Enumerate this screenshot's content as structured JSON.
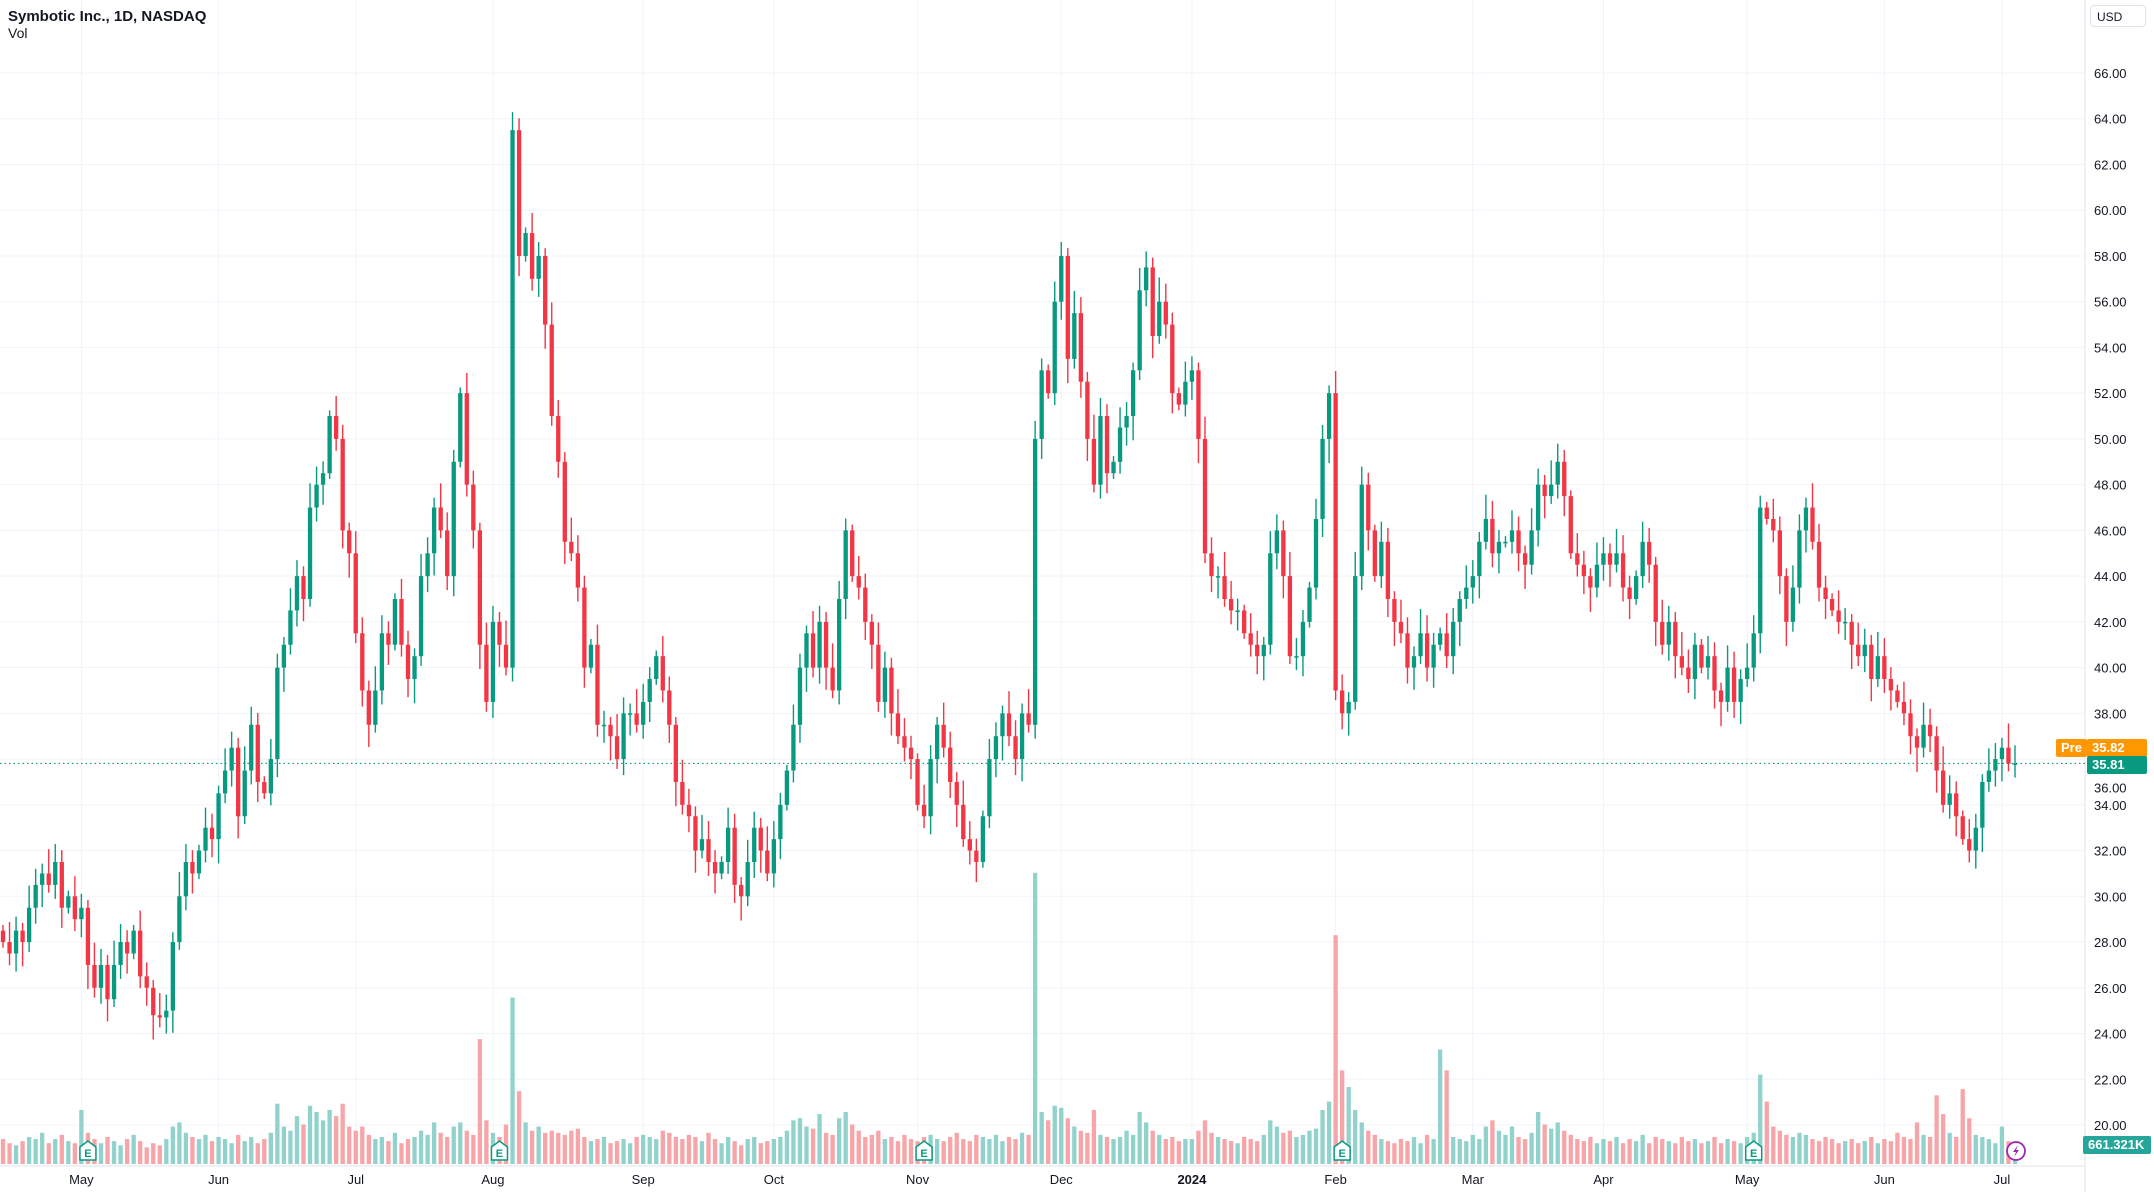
{
  "header": {
    "title": "Symbotic Inc., 1D, NASDAQ",
    "volume_label": "Vol",
    "currency": "USD"
  },
  "badges": {
    "pre_label": "Pre",
    "pre_price": "35.82",
    "last_price": "35.81",
    "volume_value": "661.321K"
  },
  "colors": {
    "up": "#089981",
    "down": "#f23645",
    "vol_up": "#92d2cc",
    "vol_down": "#f7a5a9",
    "pre": "#ff9800",
    "earnings": "#089981",
    "lightning": "#9c27b0"
  },
  "chart_data": {
    "type": "candlestick",
    "title": "Symbotic Inc., 1D, NASDAQ",
    "ylabel": "USD",
    "ylim": [
      19,
      67
    ],
    "y_ticks": [
      "66.00",
      "64.00",
      "62.00",
      "60.00",
      "58.00",
      "56.00",
      "54.00",
      "52.00",
      "50.00",
      "48.00",
      "46.00",
      "44.00",
      "42.00",
      "40.00",
      "38.00",
      "36.00",
      "34.00",
      "32.00",
      "30.00",
      "28.00",
      "26.00",
      "24.00",
      "22.00",
      "20.00"
    ],
    "last_price": 35.81,
    "pre_market_price": 35.82,
    "first_open": 28.5,
    "months": [
      {
        "label": "",
        "close": [
          28,
          27.5,
          28.5,
          28,
          29.5,
          30.5,
          31,
          30.5,
          31.5,
          29.5,
          30,
          29
        ],
        "vol": [
          1.2,
          1.0,
          0.9,
          1.1,
          1.3,
          1.2,
          1.5,
          1.0,
          1.2,
          1.4,
          1.1,
          1.0
        ]
      },
      {
        "label": "May",
        "close": [
          29.5,
          27,
          26,
          27,
          25.5,
          27,
          28,
          27.5,
          28.5,
          26.5,
          26,
          24.8,
          24.7,
          25,
          28,
          30,
          31.5,
          31,
          32,
          33,
          32.5
        ],
        "vol": [
          2.6,
          1.5,
          1.2,
          1.0,
          1.3,
          1.1,
          0.9,
          1.2,
          1.4,
          1.1,
          0.8,
          1.0,
          0.9,
          1.2,
          1.8,
          2.0,
          1.5,
          1.3,
          1.2,
          1.4,
          1.1
        ]
      },
      {
        "label": "Jun",
        "close": [
          34.5,
          35.5,
          36.5,
          33.5,
          35.5,
          37.5,
          35,
          34.5,
          36,
          40,
          41,
          42.5,
          44,
          43,
          47,
          48,
          48.5,
          51,
          50,
          46,
          45
        ],
        "vol": [
          1.3,
          1.2,
          1.0,
          1.4,
          1.1,
          1.3,
          1.0,
          1.2,
          1.5,
          2.9,
          1.8,
          1.6,
          2.3,
          1.9,
          2.8,
          2.5,
          2.1,
          2.6,
          2.3,
          2.9,
          1.8
        ]
      },
      {
        "label": "Jul",
        "close": [
          41.5,
          39,
          37.5,
          39,
          41.5,
          41,
          43,
          41,
          39.5,
          40.5,
          44,
          45,
          47,
          46,
          44,
          49,
          52,
          48,
          46,
          41,
          38.5
        ],
        "vol": [
          1.6,
          1.8,
          1.4,
          1.2,
          1.3,
          1.1,
          1.5,
          1.0,
          1.2,
          1.3,
          1.6,
          1.4,
          2.0,
          1.5,
          1.3,
          1.8,
          2.0,
          1.6,
          1.4,
          6.0,
          2.1
        ]
      },
      {
        "label": "Aug",
        "close": [
          42,
          41,
          40,
          63.5,
          58,
          59,
          57,
          58,
          55,
          51,
          49,
          45.5,
          45,
          43.5,
          40,
          41,
          37.5,
          37.5,
          37,
          36,
          38,
          38,
          37.5
        ],
        "vol": [
          1.5,
          1.3,
          1.9,
          8.0,
          3.5,
          2.0,
          1.6,
          1.8,
          1.5,
          1.6,
          1.5,
          1.4,
          1.6,
          1.7,
          1.3,
          1.1,
          1.2,
          1.3,
          1.0,
          1.1,
          1.2,
          1.0,
          1.3
        ]
      },
      {
        "label": "Sep",
        "close": [
          38.5,
          39.5,
          40.5,
          39,
          37.5,
          35,
          34,
          33.5,
          32,
          32.5,
          31.5,
          31,
          31.5,
          33,
          30.5,
          30,
          31.5,
          33,
          32,
          31
        ],
        "vol": [
          1.4,
          1.3,
          1.2,
          1.6,
          1.5,
          1.3,
          1.2,
          1.4,
          1.3,
          1.1,
          1.5,
          1.2,
          1.0,
          1.3,
          1.1,
          0.9,
          1.2,
          1.3,
          1.0,
          1.1
        ]
      },
      {
        "label": "Oct",
        "close": [
          32.5,
          34,
          35.5,
          37.5,
          40,
          41.5,
          40,
          42,
          40,
          39,
          43,
          46,
          44,
          43.5,
          42,
          41,
          38.5,
          40,
          38,
          37,
          36.5,
          36
        ],
        "vol": [
          1.2,
          1.3,
          1.6,
          2.1,
          2.2,
          1.8,
          1.7,
          2.4,
          1.5,
          1.4,
          2.2,
          2.5,
          1.9,
          1.6,
          1.3,
          1.4,
          1.6,
          1.2,
          1.3,
          1.1,
          1.4,
          1.2
        ]
      },
      {
        "label": "Nov",
        "close": [
          34,
          33.5,
          36,
          37.5,
          36.5,
          35,
          34,
          32.5,
          32,
          31.5,
          33.5,
          36,
          37,
          38,
          37,
          36,
          38,
          37.5,
          50,
          53,
          52,
          56
        ],
        "vol": [
          1.1,
          1.3,
          1.4,
          1.2,
          1.1,
          1.3,
          1.5,
          1.2,
          1.1,
          1.4,
          1.3,
          1.2,
          1.4,
          1.1,
          1.3,
          1.2,
          1.5,
          1.4,
          14.0,
          2.5,
          2.1,
          2.8
        ]
      },
      {
        "label": "Dec",
        "close": [
          58,
          53.5,
          55.5,
          52.5,
          50,
          48,
          51,
          48.5,
          49,
          50.5,
          51,
          53,
          56.5,
          57.5,
          54.5,
          56,
          55,
          52,
          51.5,
          52.5
        ],
        "vol": [
          2.7,
          2.2,
          1.8,
          1.6,
          1.5,
          2.6,
          1.4,
          1.3,
          1.2,
          1.3,
          1.6,
          1.4,
          2.5,
          2.0,
          1.6,
          1.4,
          1.2,
          1.3,
          1.1,
          1.2
        ]
      },
      {
        "label": "2024",
        "close": [
          53,
          50,
          45,
          44,
          44,
          43,
          42.5,
          42.5,
          41.5,
          41,
          40.5,
          41,
          45,
          46,
          44,
          40.5,
          40.5,
          42,
          43.5,
          46.5,
          50,
          52
        ],
        "vol": [
          1.2,
          1.6,
          2.1,
          1.5,
          1.3,
          1.2,
          1.1,
          1.0,
          1.3,
          1.2,
          1.1,
          1.4,
          2.1,
          1.8,
          1.5,
          1.6,
          1.3,
          1.4,
          1.6,
          1.7,
          2.6,
          3.0
        ]
      },
      {
        "label": "Feb",
        "close": [
          39,
          38,
          38.5,
          44,
          48,
          46,
          44,
          45.5,
          43,
          42,
          41.5,
          40,
          40.5,
          41.5,
          40,
          41,
          41.5,
          40.5,
          42,
          43,
          43.5
        ],
        "vol": [
          11.0,
          4.5,
          3.7,
          2.6,
          2.0,
          1.6,
          1.4,
          1.2,
          1.1,
          1.0,
          1.2,
          1.1,
          1.3,
          1.0,
          1.4,
          1.2,
          5.5,
          4.5,
          1.3,
          1.2,
          1.1
        ]
      },
      {
        "label": "Mar",
        "close": [
          44,
          45.5,
          46.5,
          45,
          45.5,
          45.5,
          46,
          45,
          44.5,
          46,
          48,
          47.5,
          48,
          49,
          47.5,
          45,
          44.5,
          44,
          43.5,
          44.5
        ],
        "vol": [
          1.4,
          1.2,
          1.8,
          2.1,
          1.6,
          1.4,
          1.8,
          1.3,
          1.2,
          1.5,
          2.5,
          1.9,
          1.7,
          2.0,
          1.6,
          1.4,
          1.2,
          1.1,
          1.3,
          1.0
        ]
      },
      {
        "label": "Apr",
        "close": [
          45,
          44.5,
          45,
          43.5,
          43,
          44,
          45.5,
          44.5,
          42,
          41,
          42,
          40.5,
          40,
          39.5,
          41,
          40,
          40.5,
          39,
          38.5,
          40,
          38.5,
          39.5
        ],
        "vol": [
          1.2,
          1.1,
          1.3,
          1.0,
          1.2,
          1.1,
          1.4,
          1.0,
          1.3,
          1.2,
          1.1,
          1.0,
          1.3,
          1.1,
          1.2,
          1.0,
          1.1,
          1.3,
          1.0,
          1.2,
          1.1,
          1.0
        ]
      },
      {
        "label": "May",
        "close": [
          40,
          41.5,
          47,
          46.5,
          46,
          44,
          42,
          43.5,
          46,
          47,
          45.5,
          43.5,
          43,
          42.5,
          42,
          42,
          41,
          40.5,
          41,
          39.5,
          40.5
        ],
        "vol": [
          1.3,
          1.5,
          4.3,
          3.0,
          1.8,
          1.6,
          1.4,
          1.3,
          1.5,
          1.4,
          1.2,
          1.1,
          1.3,
          1.2,
          1.0,
          1.1,
          1.2,
          1.0,
          1.1,
          1.3,
          1.0
        ]
      },
      {
        "label": "Jun",
        "close": [
          39.5,
          39,
          38.5,
          38,
          37,
          36.5,
          37.5,
          37,
          35.5,
          34,
          34.5,
          33.5,
          32.5,
          32,
          33,
          35,
          35.5,
          36
        ],
        "vol": [
          1.2,
          1.1,
          1.5,
          1.3,
          1.2,
          2.0,
          1.4,
          1.3,
          3.3,
          2.4,
          1.5,
          1.3,
          3.6,
          2.2,
          1.4,
          1.3,
          1.2,
          1.0
        ]
      },
      {
        "label": "Jul",
        "close": [
          36.5,
          35.8,
          35.81
        ],
        "vol": [
          1.8,
          1.1,
          0.2
        ]
      }
    ],
    "earnings_markers_months": [
      "May",
      "Aug",
      "Nov",
      "Feb",
      "May"
    ]
  }
}
